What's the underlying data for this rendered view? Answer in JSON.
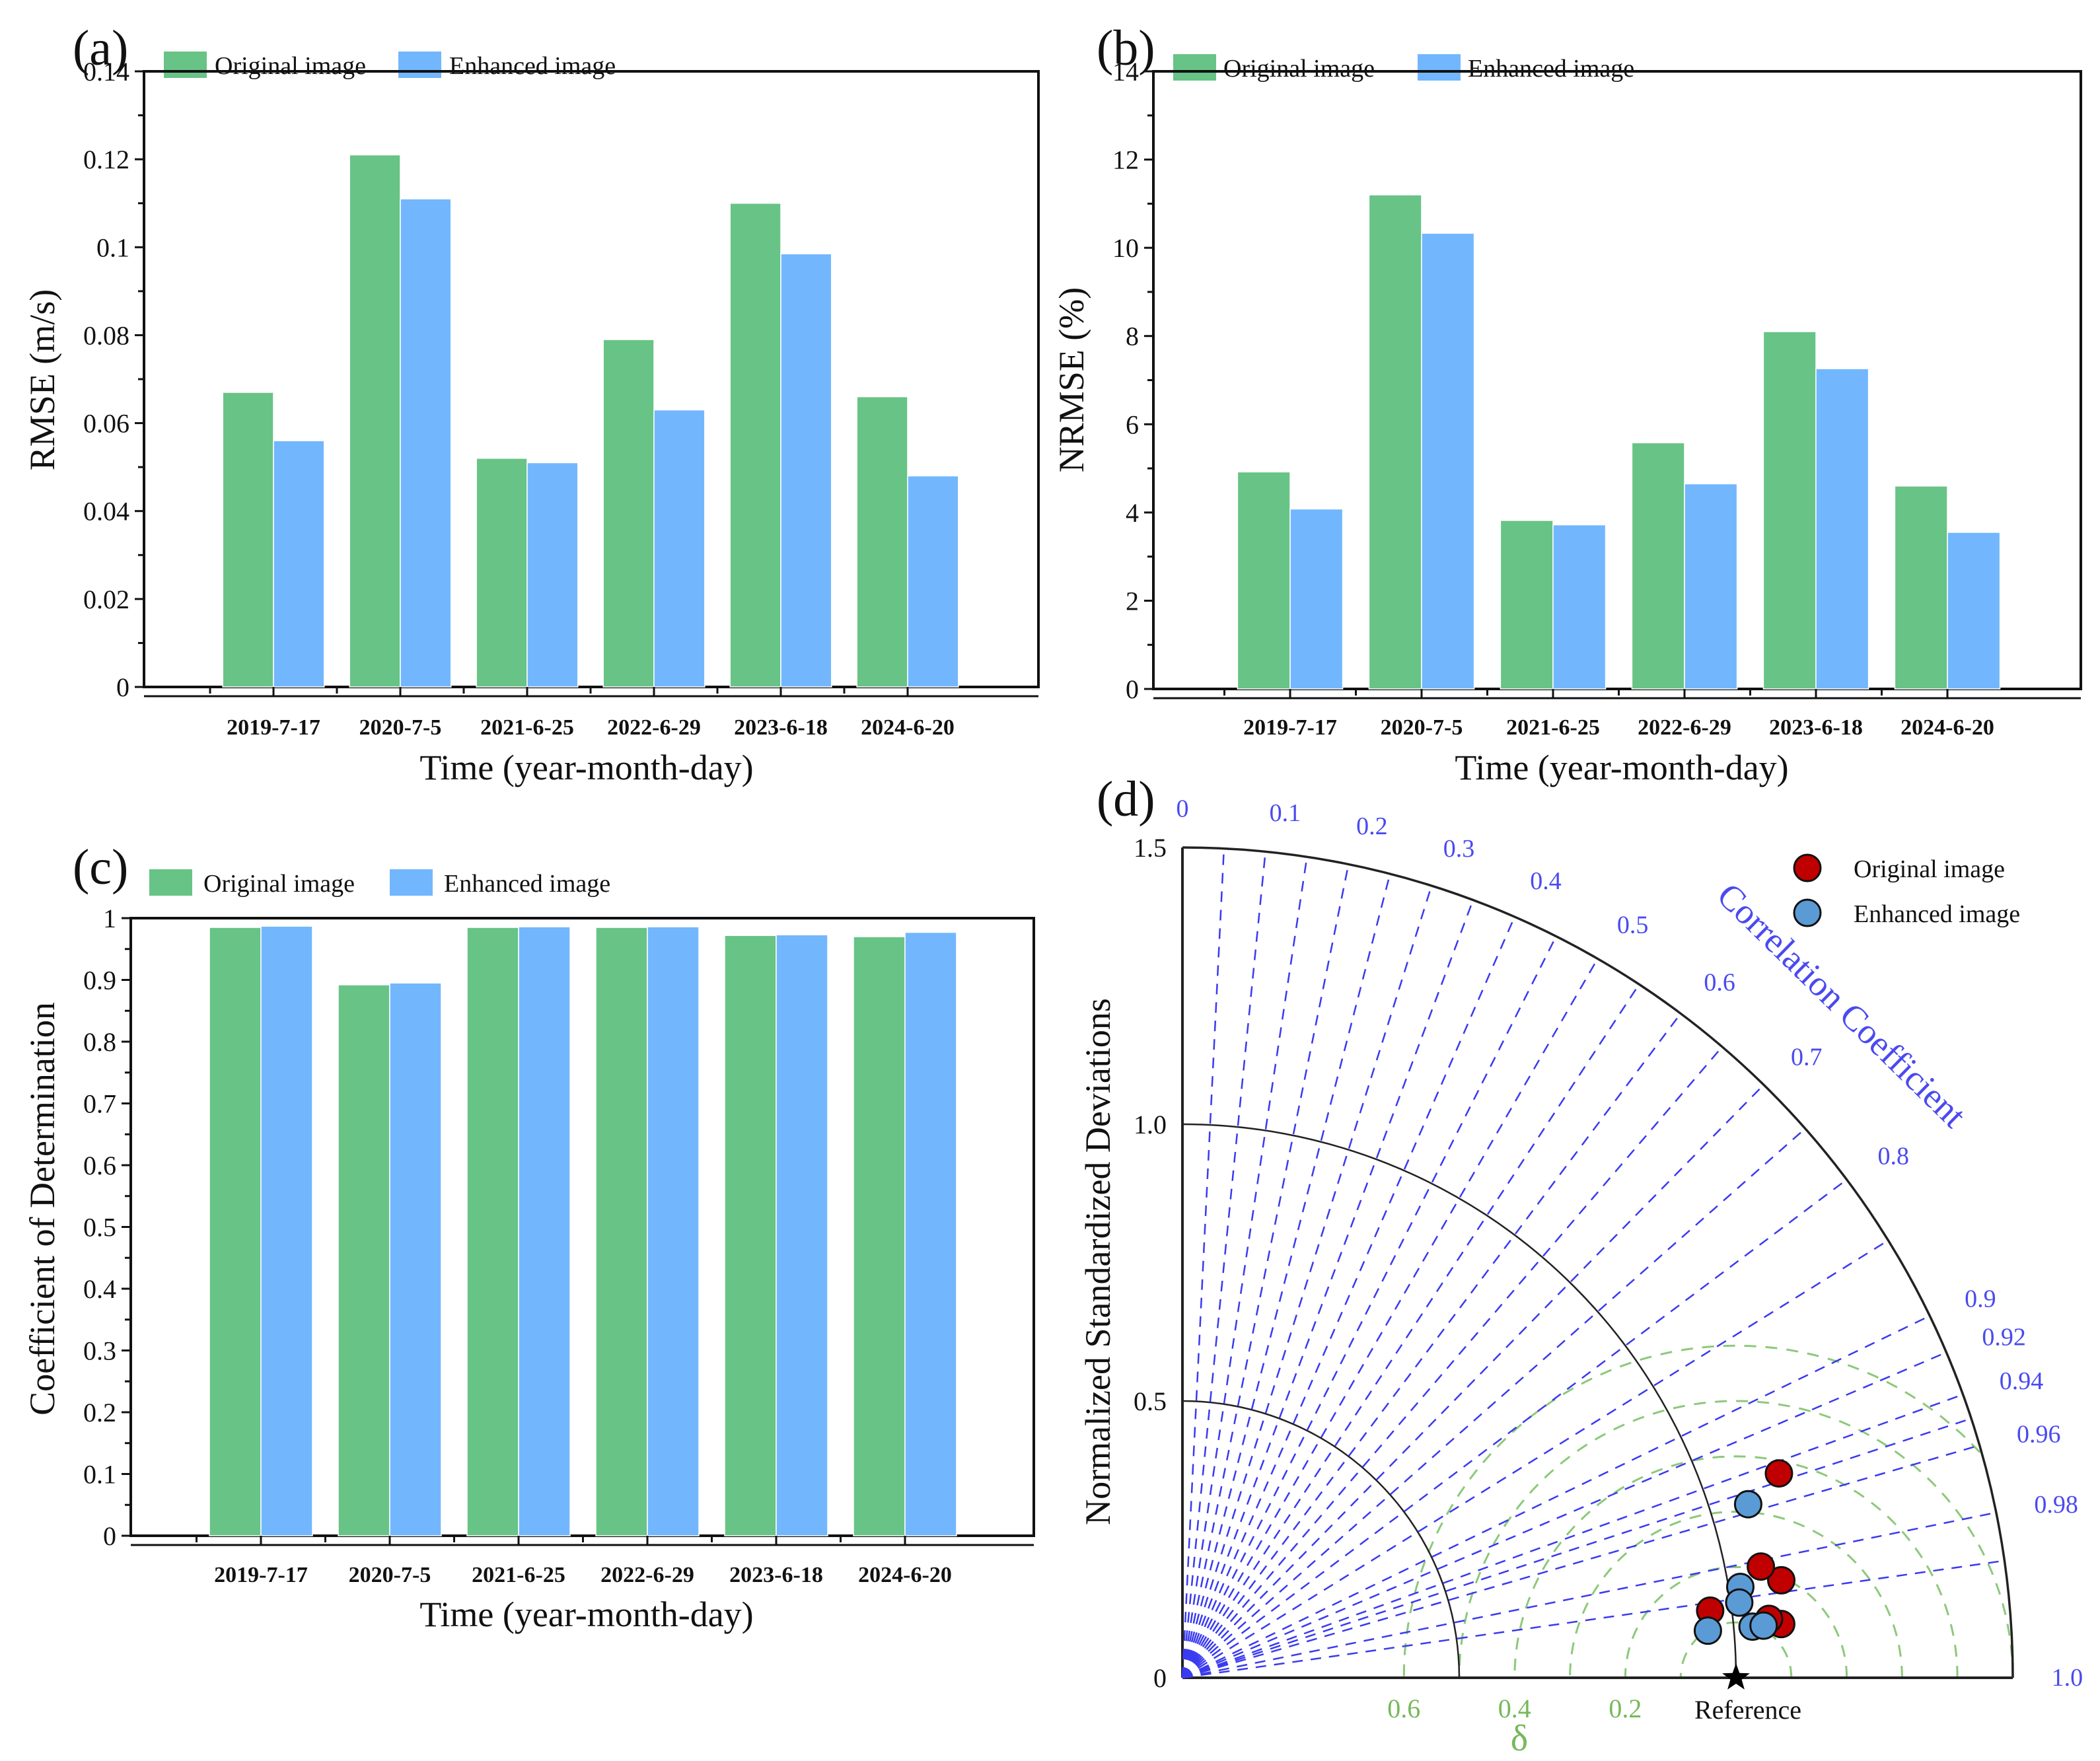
{
  "figure": {
    "colors": {
      "original": "#68c386",
      "enhanced": "#72b7fd",
      "taylor_original": "#c00000",
      "taylor_enhanced": "#5b9bd5",
      "corr_lines": "#3a3af0",
      "delta_arcs": "#8cc97a"
    }
  },
  "chart_data": [
    {
      "id": "a",
      "panel_label": "(a)",
      "type": "bar",
      "title": "",
      "xlabel": "Time (year-month-day)",
      "ylabel": "RMSE (m/s)",
      "ylim": [
        0,
        0.14
      ],
      "yticks": [
        "0",
        "0.02",
        "0.04",
        "0.06",
        "0.08",
        "0.1",
        "0.12",
        "0.14"
      ],
      "ytick_values": [
        0,
        0.02,
        0.04,
        0.06,
        0.08,
        0.1,
        0.12,
        0.14
      ],
      "categories": [
        "2019-7-17",
        "2020-7-5",
        "2021-6-25",
        "2022-6-29",
        "2023-6-18",
        "2024-6-20"
      ],
      "legend": "top-left",
      "series": [
        {
          "name": "Original image",
          "values": [
            0.067,
            0.121,
            0.052,
            0.079,
            0.11,
            0.066
          ]
        },
        {
          "name": "Enhanced image",
          "values": [
            0.056,
            0.111,
            0.051,
            0.063,
            0.0985,
            0.048
          ]
        }
      ]
    },
    {
      "id": "b",
      "panel_label": "(b)",
      "type": "bar",
      "title": "",
      "xlabel": "Time (year-month-day)",
      "ylabel": "NRMSE (%)",
      "ylim": [
        0,
        14
      ],
      "yticks": [
        "0",
        "2",
        "4",
        "6",
        "8",
        "10",
        "12",
        "14"
      ],
      "ytick_values": [
        0,
        2,
        4,
        6,
        8,
        10,
        12,
        14
      ],
      "categories": [
        "2019-7-17",
        "2020-7-5",
        "2021-6-25",
        "2022-6-29",
        "2023-6-18",
        "2024-6-20"
      ],
      "legend": "top-left",
      "series": [
        {
          "name": "Original image",
          "values": [
            4.92,
            11.2,
            3.82,
            5.58,
            8.1,
            4.6
          ]
        },
        {
          "name": "Enhanced image",
          "values": [
            4.08,
            10.33,
            3.72,
            4.65,
            7.26,
            3.55
          ]
        }
      ]
    },
    {
      "id": "c",
      "panel_label": "(c)",
      "type": "bar",
      "title": "",
      "xlabel": "Time (year-month-day)",
      "ylabel": "Coefficient of Determination",
      "ylim": [
        0,
        1
      ],
      "yticks": [
        "0",
        "0.1",
        "0.2",
        "0.3",
        "0.4",
        "0.5",
        "0.6",
        "0.7",
        "0.8",
        "0.9",
        "1"
      ],
      "ytick_values": [
        0,
        0.1,
        0.2,
        0.3,
        0.4,
        0.5,
        0.6,
        0.7,
        0.8,
        0.9,
        1
      ],
      "categories": [
        "2019-7-17",
        "2020-7-5",
        "2021-6-25",
        "2022-6-29",
        "2023-6-18",
        "2024-6-20"
      ],
      "legend": "top-left",
      "series": [
        {
          "name": "Original image",
          "values": [
            0.985,
            0.892,
            0.985,
            0.985,
            0.972,
            0.97
          ]
        },
        {
          "name": "Enhanced image",
          "values": [
            0.987,
            0.895,
            0.986,
            0.986,
            0.973,
            0.977
          ]
        }
      ]
    },
    {
      "id": "d",
      "panel_label": "(d)",
      "type": "scatter",
      "subtype": "taylor-diagram",
      "title": "",
      "ylabel": "Normalized Standardized Deviations",
      "corr_title": "Correlation Coefficient",
      "delta_title": "δ",
      "reference_label": "Reference",
      "std_range": [
        0,
        1.5
      ],
      "std_ticks": [
        "0",
        "0.5",
        "1.0",
        "1.5"
      ],
      "std_tick_values": [
        0,
        0.5,
        1.0,
        1.5
      ],
      "std_arcs": [
        0.5,
        1.0,
        1.5
      ],
      "corr_ticks": [
        "0",
        "0.1",
        "0.2",
        "0.3",
        "0.4",
        "0.5",
        "0.6",
        "0.7",
        "0.8",
        "0.9",
        "0.92",
        "0.94",
        "0.96",
        "0.98",
        "1.0"
      ],
      "corr_tick_values": [
        0,
        0.1,
        0.2,
        0.3,
        0.4,
        0.5,
        0.6,
        0.7,
        0.8,
        0.9,
        0.92,
        0.94,
        0.96,
        0.98,
        1.0
      ],
      "delta_ticks": [
        "0.6",
        "0.4",
        "0.2"
      ],
      "delta_tick_values": [
        0.6,
        0.4,
        0.2
      ],
      "delta_arcs": [
        0.1,
        0.2,
        0.3,
        0.4,
        0.5,
        0.6
      ],
      "reference": {
        "std": 1.0,
        "corr": 1.0
      },
      "legend": "top-right",
      "series": [
        {
          "name": "Original image",
          "points": [
            {
              "std": 1.139,
              "corr": 0.946
            },
            {
              "std": 1.096,
              "corr": 0.987
            },
            {
              "std": 1.064,
              "corr": 0.982
            },
            {
              "std": 0.961,
              "corr": 0.992
            },
            {
              "std": 1.086,
              "corr": 0.996
            },
            {
              "std": 1.065,
              "corr": 0.995
            }
          ]
        },
        {
          "name": "Enhanced image",
          "points": [
            {
              "std": 1.069,
              "corr": 0.956
            },
            {
              "std": 1.021,
              "corr": 0.987
            },
            {
              "std": 1.015,
              "corr": 0.991
            },
            {
              "std": 0.953,
              "corr": 0.996
            },
            {
              "std": 1.034,
              "corr": 0.996
            },
            {
              "std": 1.054,
              "corr": 0.996
            }
          ]
        }
      ]
    }
  ]
}
